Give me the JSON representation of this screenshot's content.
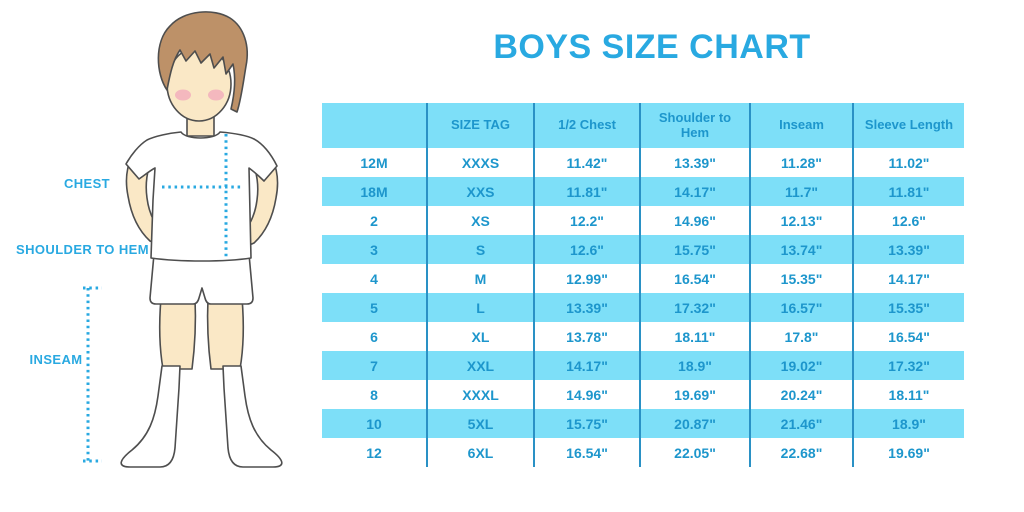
{
  "title": "BOYS SIZE CHART",
  "diagram": {
    "labels": {
      "chest": "CHEST",
      "shoulder_to_hem": "SHOULDER TO HEM",
      "inseam": "INSEAM"
    }
  },
  "table": {
    "headers": [
      "",
      "SIZE TAG",
      "1/2 Chest",
      "Shoulder to Hem",
      "Inseam",
      "Sleeve Length"
    ],
    "rows": [
      [
        "12M",
        "XXXS",
        "11.42\"",
        "13.39\"",
        "11.28\"",
        "11.02\""
      ],
      [
        "18M",
        "XXS",
        "11.81\"",
        "14.17\"",
        "11.7\"",
        "11.81\""
      ],
      [
        "2",
        "XS",
        "12.2\"",
        "14.96\"",
        "12.13\"",
        "12.6\""
      ],
      [
        "3",
        "S",
        "12.6\"",
        "15.75\"",
        "13.74\"",
        "13.39\""
      ],
      [
        "4",
        "M",
        "12.99\"",
        "16.54\"",
        "15.35\"",
        "14.17\""
      ],
      [
        "5",
        "L",
        "13.39\"",
        "17.32\"",
        "16.57\"",
        "15.35\""
      ],
      [
        "6",
        "XL",
        "13.78\"",
        "18.11\"",
        "17.8\"",
        "16.54\""
      ],
      [
        "7",
        "XXL",
        "14.17\"",
        "18.9\"",
        "19.02\"",
        "17.32\""
      ],
      [
        "8",
        "XXXL",
        "14.96\"",
        "19.69\"",
        "20.24\"",
        "18.11\""
      ],
      [
        "10",
        "5XL",
        "15.75\"",
        "20.87\"",
        "21.46\"",
        "18.9\""
      ],
      [
        "12",
        "6XL",
        "16.54\"",
        "22.05\"",
        "22.68\"",
        "19.69\""
      ]
    ]
  },
  "colors": {
    "accent": "#29A9E1",
    "table-text": "#1D96CC",
    "row-blue": "#7DDFF8",
    "divider": "#2A91C5",
    "skin": "#FAE8C6",
    "hair": "#BD9168",
    "blush": "#F2ABBC",
    "outline": "#4E4E4E"
  }
}
